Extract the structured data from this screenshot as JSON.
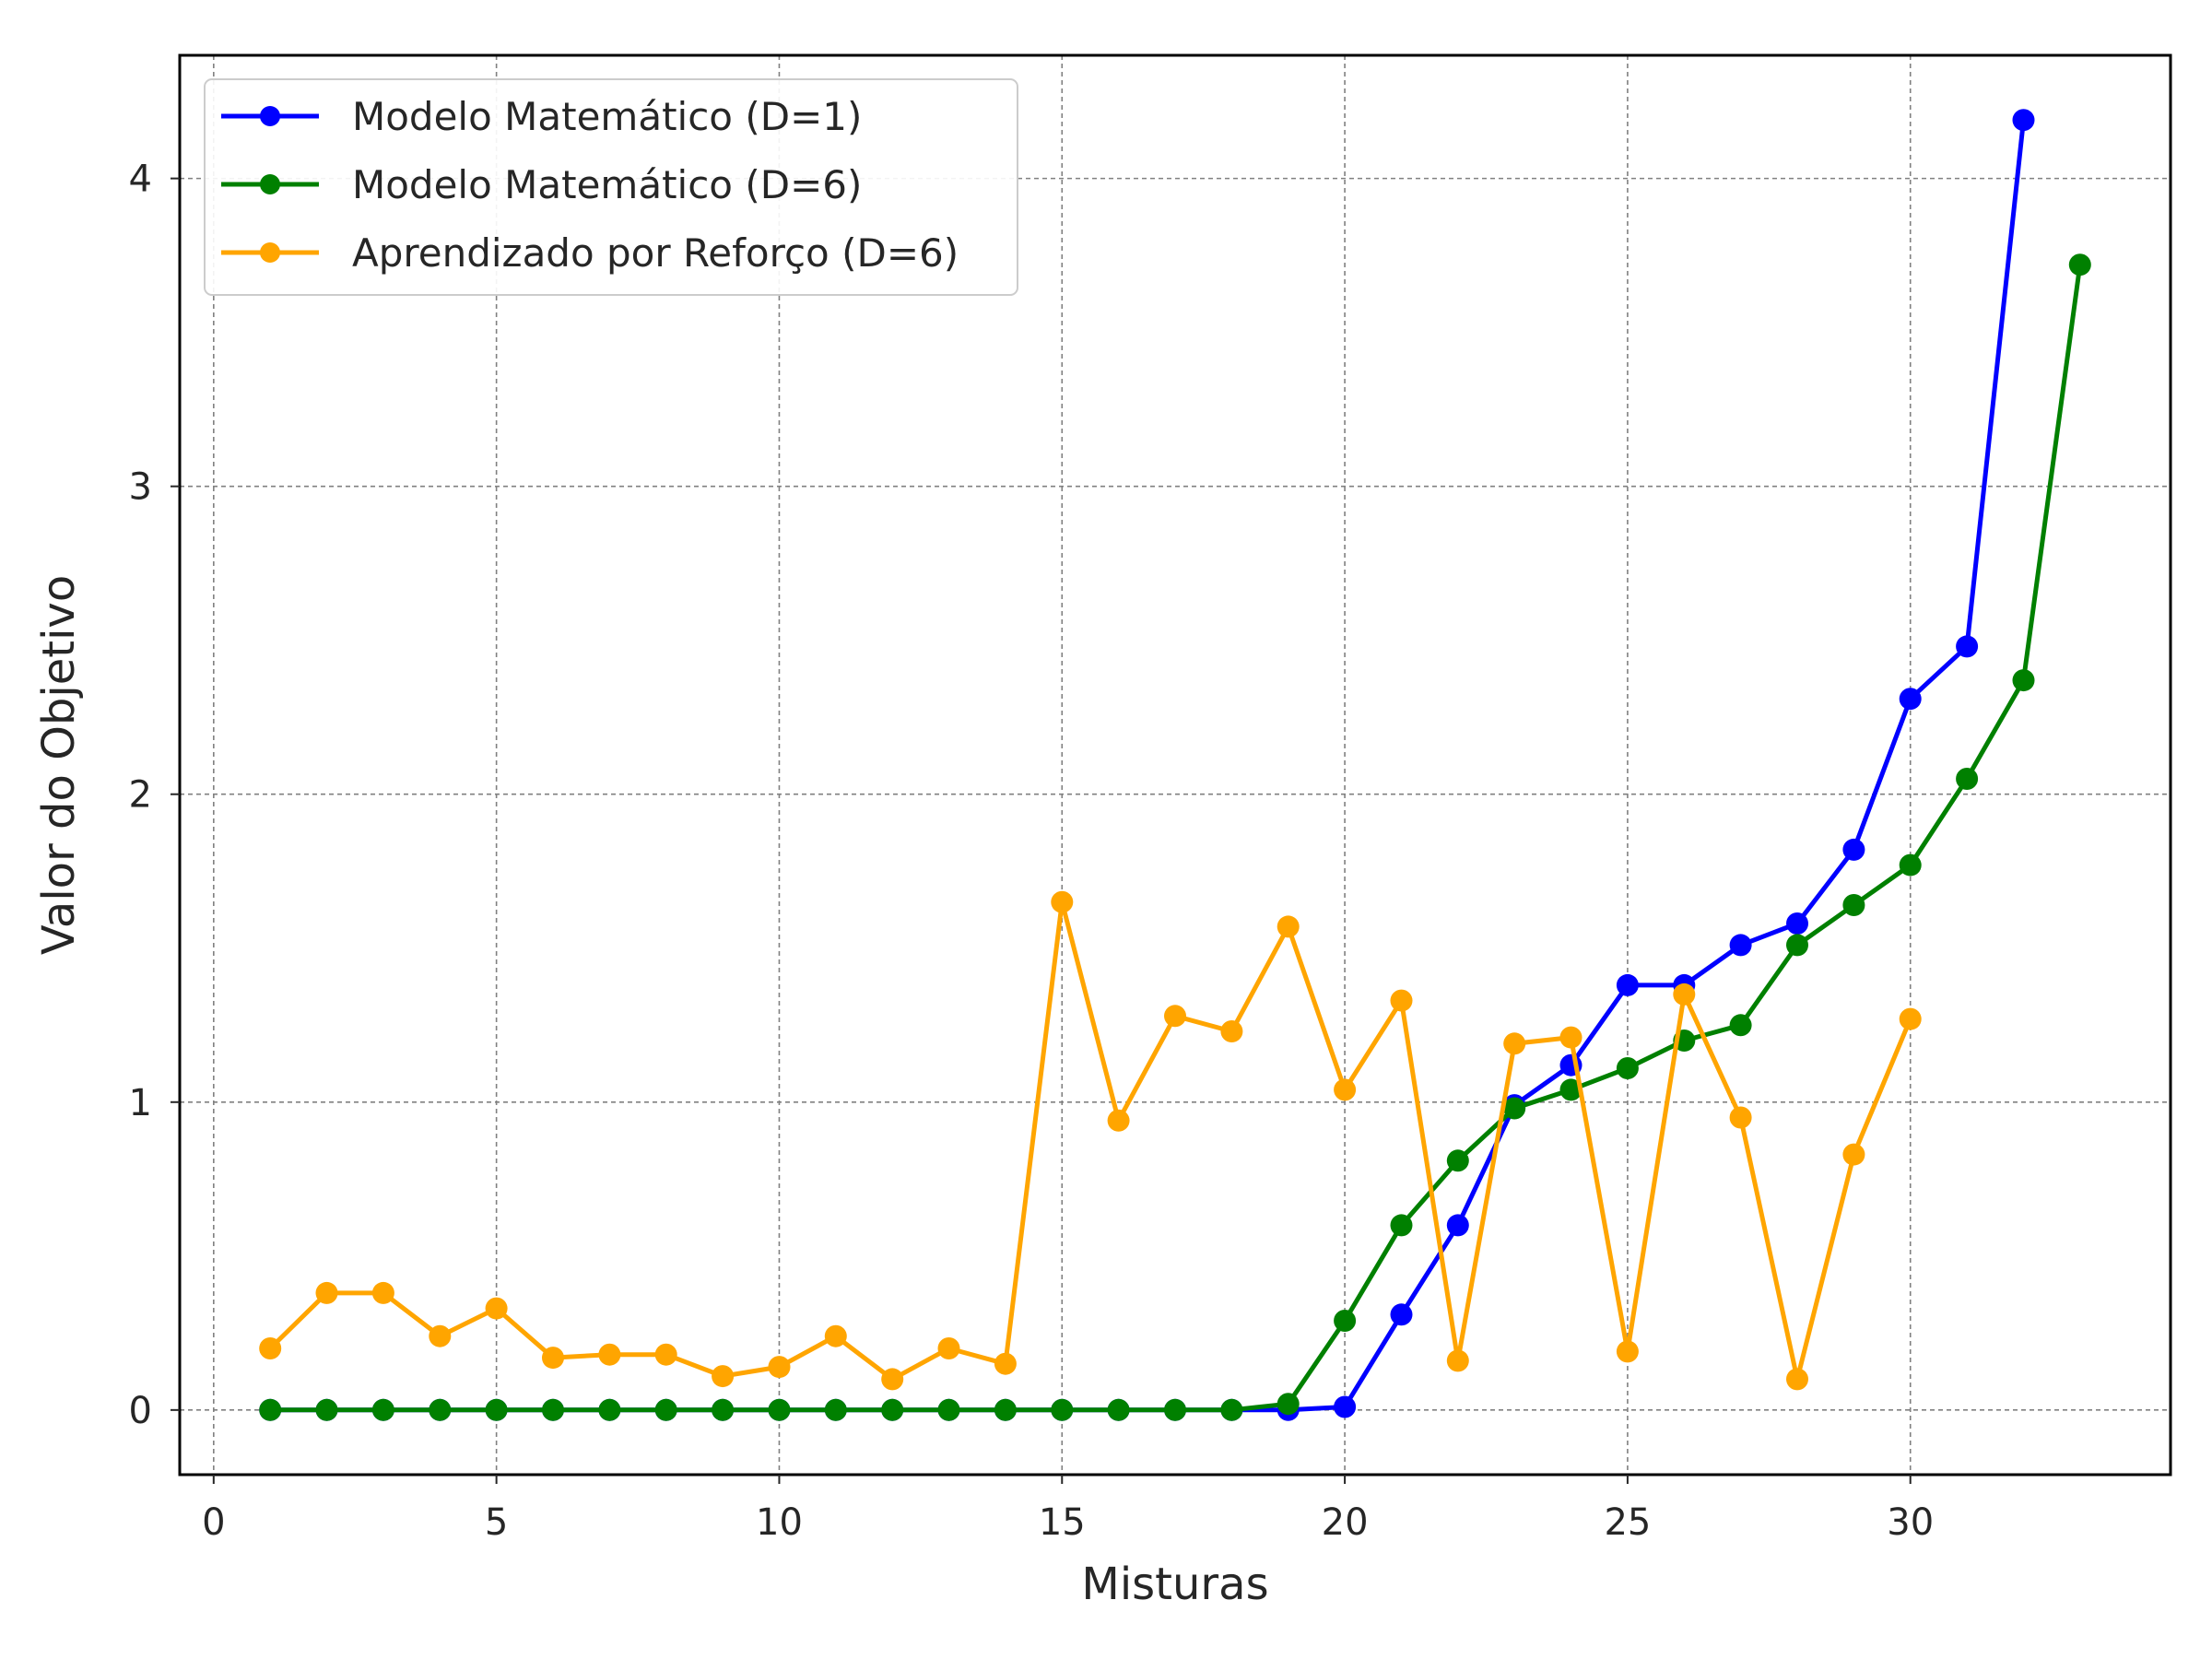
{
  "chart_data": {
    "type": "line",
    "title": "",
    "xlabel": "Misturas",
    "ylabel": "Valor do Objetivo",
    "xlim": [
      -0.6,
      34.6
    ],
    "ylim": [
      -0.21,
      4.4
    ],
    "xticks": [
      0,
      5,
      10,
      15,
      20,
      25,
      30
    ],
    "yticks": [
      0,
      1,
      2,
      3,
      4
    ],
    "grid": true,
    "grid_style": "dashed",
    "legend_position": "upper-left",
    "series": [
      {
        "name": "Modelo Matemático (D=1)",
        "color": "#0000ff",
        "x": [
          1,
          2,
          3,
          4,
          5,
          6,
          7,
          8,
          9,
          10,
          11,
          12,
          13,
          14,
          15,
          16,
          17,
          18,
          19,
          20,
          21,
          22,
          23,
          24,
          25,
          26,
          27,
          28,
          29,
          30,
          31,
          32
        ],
        "y": [
          0,
          0,
          0,
          0,
          0,
          0,
          0,
          0,
          0,
          0,
          0,
          0,
          0,
          0,
          0,
          0,
          0,
          0,
          0.0,
          0.01,
          0.31,
          0.6,
          0.99,
          1.12,
          1.38,
          1.38,
          1.51,
          1.58,
          1.82,
          2.31,
          2.48,
          4.19
        ]
      },
      {
        "name": "Modelo Matemático (D=6)",
        "color": "#008000",
        "x": [
          1,
          2,
          3,
          4,
          5,
          6,
          7,
          8,
          9,
          10,
          11,
          12,
          13,
          14,
          15,
          16,
          17,
          18,
          19,
          20,
          21,
          22,
          23,
          24,
          25,
          26,
          27,
          28,
          29,
          30,
          31,
          32,
          33
        ],
        "y": [
          0,
          0,
          0,
          0,
          0,
          0,
          0,
          0,
          0,
          0,
          0,
          0,
          0,
          0,
          0,
          0,
          0,
          0,
          0.02,
          0.29,
          0.6,
          0.81,
          0.98,
          1.04,
          1.11,
          1.2,
          1.25,
          1.51,
          1.64,
          1.77,
          2.05,
          2.37,
          3.72
        ]
      },
      {
        "name": "Aprendizado por Reforço (D=6)",
        "color": "#ffa500",
        "x": [
          1,
          2,
          3,
          4,
          5,
          6,
          7,
          8,
          9,
          10,
          11,
          12,
          13,
          14,
          15,
          16,
          17,
          18,
          19,
          20,
          21,
          22,
          23,
          24,
          25,
          26,
          27,
          28,
          29,
          30
        ],
        "y": [
          0.2,
          0.38,
          0.38,
          0.24,
          0.33,
          0.17,
          0.18,
          0.18,
          0.11,
          0.14,
          0.24,
          0.1,
          0.2,
          0.15,
          1.65,
          0.94,
          1.28,
          1.23,
          1.57,
          1.04,
          1.33,
          0.16,
          1.19,
          1.21,
          0.19,
          1.35,
          0.95,
          0.1,
          0.83,
          1.27
        ]
      }
    ]
  }
}
